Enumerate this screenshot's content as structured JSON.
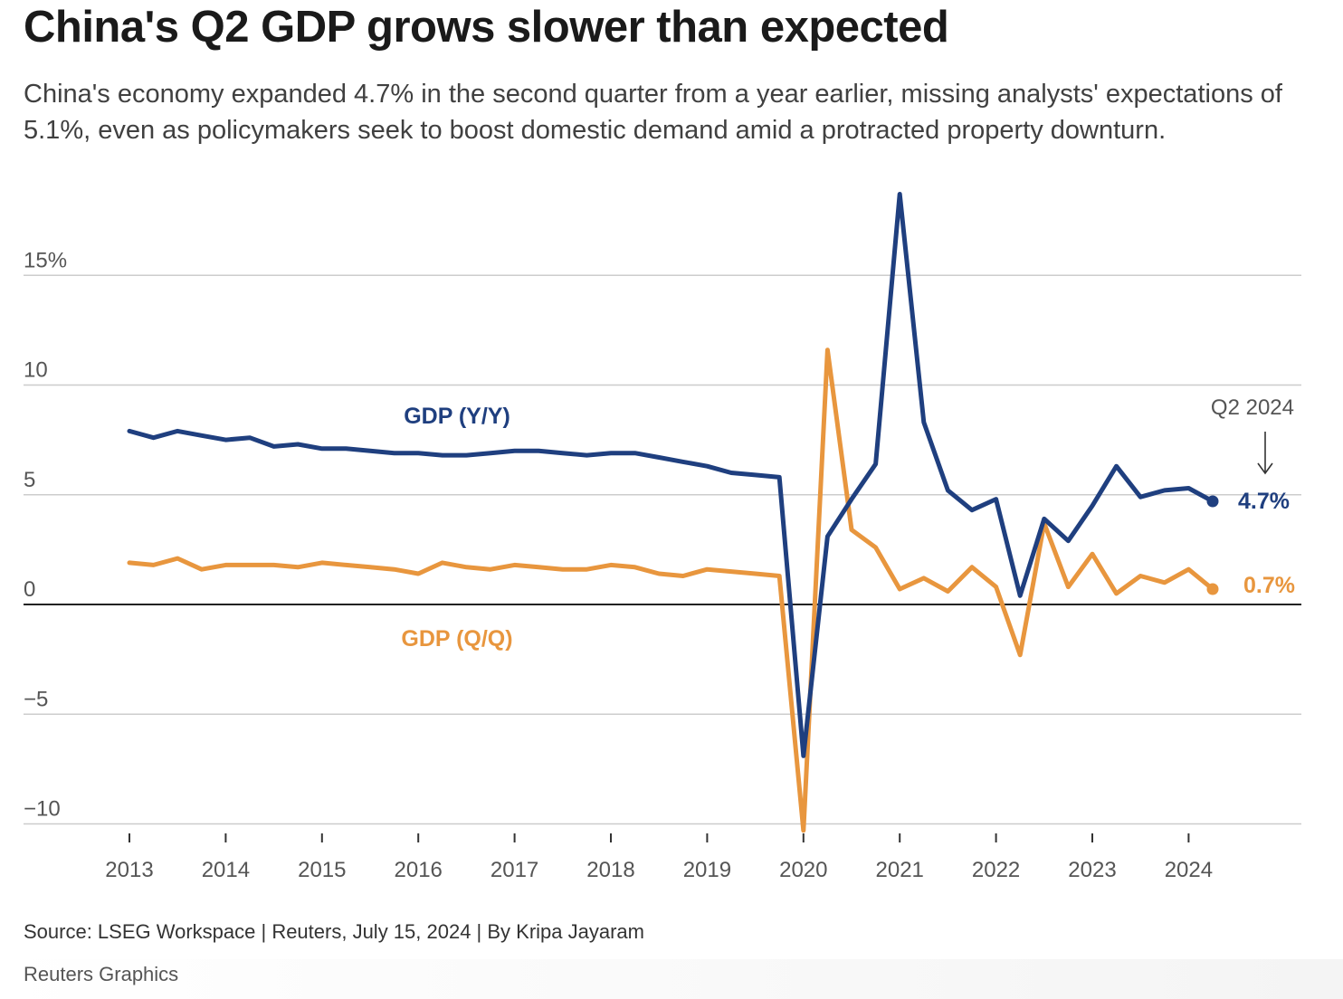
{
  "header": {
    "title": "China's Q2 GDP grows slower than expected",
    "subtitle": "China's economy expanded 4.7% in the second quarter from a year earlier, missing analysts' expectations of 5.1%, even as policymakers seek to boost domestic demand amid a protracted property downturn."
  },
  "footer": {
    "source": "Source: LSEG Workspace | Reuters, July 15, 2024 | By Kripa Jayaram",
    "credit": "Reuters Graphics"
  },
  "colors": {
    "yy": "#1f3f7f",
    "qq": "#e8963e",
    "grid": "#cccccc",
    "zero": "#222222"
  },
  "chart_data": {
    "type": "line",
    "title": "China's Q2 GDP grows slower than expected",
    "xlabel": "",
    "ylabel": "",
    "ylim": [
      -10.5,
      19
    ],
    "xlim": [
      2012.7,
      2024.95
    ],
    "grid": true,
    "y_ticks": [
      {
        "value": 15,
        "label": "15%"
      },
      {
        "value": 10,
        "label": "10"
      },
      {
        "value": 5,
        "label": "5"
      },
      {
        "value": 0,
        "label": "0"
      },
      {
        "value": -5,
        "label": "−5"
      },
      {
        "value": -10,
        "label": "−10"
      }
    ],
    "x_ticks": [
      {
        "value": 2013,
        "label": "2013"
      },
      {
        "value": 2014,
        "label": "2014"
      },
      {
        "value": 2015,
        "label": "2015"
      },
      {
        "value": 2016,
        "label": "2016"
      },
      {
        "value": 2017,
        "label": "2017"
      },
      {
        "value": 2018,
        "label": "2018"
      },
      {
        "value": 2019,
        "label": "2019"
      },
      {
        "value": 2020,
        "label": "2020"
      },
      {
        "value": 2021,
        "label": "2021"
      },
      {
        "value": 2022,
        "label": "2022"
      },
      {
        "value": 2023,
        "label": "2023"
      },
      {
        "value": 2024,
        "label": "2024"
      }
    ],
    "x": [
      2013.0,
      2013.25,
      2013.5,
      2013.75,
      2014.0,
      2014.25,
      2014.5,
      2014.75,
      2015.0,
      2015.25,
      2015.5,
      2015.75,
      2016.0,
      2016.25,
      2016.5,
      2016.75,
      2017.0,
      2017.25,
      2017.5,
      2017.75,
      2018.0,
      2018.25,
      2018.5,
      2018.75,
      2019.0,
      2019.25,
      2019.5,
      2019.75,
      2020.0,
      2020.25,
      2020.5,
      2020.75,
      2021.0,
      2021.25,
      2021.5,
      2021.75,
      2022.0,
      2022.25,
      2022.5,
      2022.75,
      2023.0,
      2023.25,
      2023.5,
      2023.75,
      2024.0,
      2024.25
    ],
    "series": [
      {
        "name": "GDP (Y/Y)",
        "label": "GDP (Y/Y)",
        "color": "#1f3f7f",
        "values": [
          7.9,
          7.6,
          7.9,
          7.7,
          7.5,
          7.6,
          7.2,
          7.3,
          7.1,
          7.1,
          7.0,
          6.9,
          6.9,
          6.8,
          6.8,
          6.9,
          7.0,
          7.0,
          6.9,
          6.8,
          6.9,
          6.9,
          6.7,
          6.5,
          6.3,
          6.0,
          5.9,
          5.8,
          -6.9,
          3.1,
          4.8,
          6.4,
          18.7,
          8.3,
          5.2,
          4.3,
          4.8,
          0.4,
          3.9,
          2.9,
          4.5,
          6.3,
          4.9,
          5.2,
          5.3,
          4.7
        ],
        "end_label": "4.7%"
      },
      {
        "name": "GDP (Q/Q)",
        "label": "GDP (Q/Q)",
        "color": "#e8963e",
        "values": [
          1.9,
          1.8,
          2.1,
          1.6,
          1.8,
          1.8,
          1.8,
          1.7,
          1.9,
          1.8,
          1.7,
          1.6,
          1.4,
          1.9,
          1.7,
          1.6,
          1.8,
          1.7,
          1.6,
          1.6,
          1.8,
          1.7,
          1.4,
          1.3,
          1.6,
          1.5,
          1.4,
          1.3,
          -10.3,
          11.6,
          3.4,
          2.6,
          0.7,
          1.2,
          0.6,
          1.7,
          0.8,
          -2.3,
          3.7,
          0.8,
          2.3,
          0.5,
          1.3,
          1.0,
          1.6,
          0.7
        ],
        "end_label": "0.7%"
      }
    ],
    "annotations": [
      {
        "text": "Q2 2024",
        "arrow": "down"
      }
    ]
  }
}
